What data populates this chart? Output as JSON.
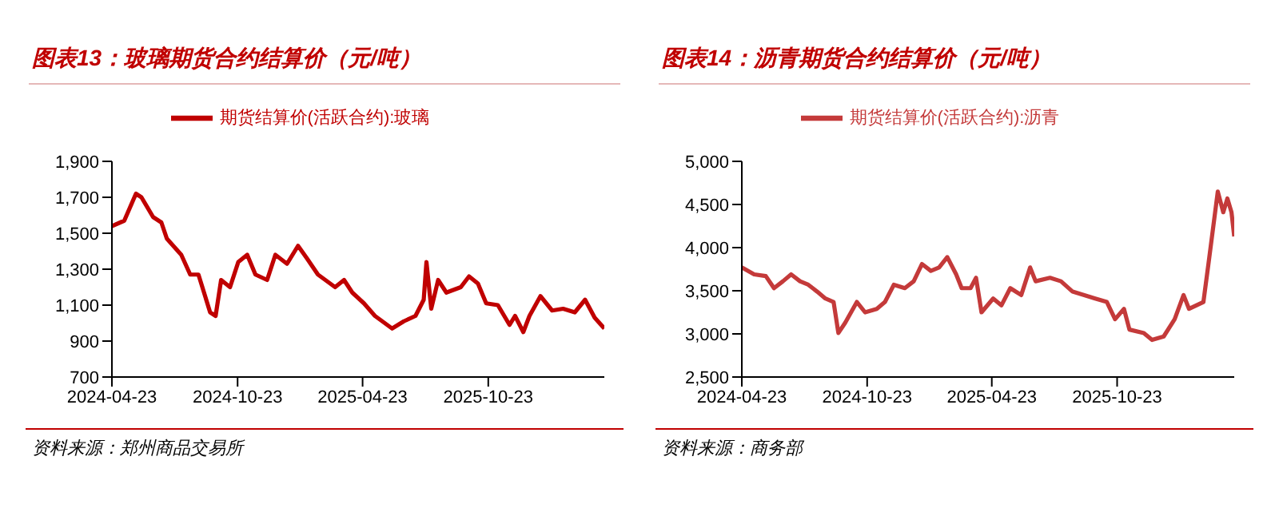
{
  "chart_data": [
    {
      "type": "line",
      "title": "图表13：玻璃期货合约结算价（元/吨）",
      "legend": "top",
      "grid": false,
      "marker": "none",
      "line_style": "solid",
      "xlim": [
        "2024-04-23",
        "2026-04-10"
      ],
      "xticks": [
        "2024-04-23",
        "2024-10-23",
        "2025-04-23",
        "2025-10-23"
      ],
      "ylim": [
        700,
        1900
      ],
      "yticks": [
        {
          "value": 700,
          "label": "700"
        },
        {
          "value": 900,
          "label": "900"
        },
        {
          "value": 1100,
          "label": "1,100"
        },
        {
          "value": 1300,
          "label": "1,300"
        },
        {
          "value": 1500,
          "label": "1,500"
        },
        {
          "value": 1700,
          "label": "1,700"
        },
        {
          "value": 1900,
          "label": "1,900"
        }
      ],
      "x": [
        "2024-04-23",
        "2024-05-11",
        "2024-05-28",
        "2024-06-05",
        "2024-06-22",
        "2024-07-04",
        "2024-07-12",
        "2024-08-02",
        "2024-08-15",
        "2024-08-27",
        "2024-09-13",
        "2024-09-21",
        "2024-09-29",
        "2024-10-12",
        "2024-10-24",
        "2024-11-06",
        "2024-11-18",
        "2024-12-05",
        "2024-12-17",
        "2025-01-03",
        "2025-01-19",
        "2025-02-01",
        "2025-02-17",
        "2025-03-14",
        "2025-03-27",
        "2025-04-08",
        "2025-04-25",
        "2025-05-11",
        "2025-06-05",
        "2025-06-22",
        "2025-07-09",
        "2025-07-21",
        "2025-07-25",
        "2025-08-01",
        "2025-08-11",
        "2025-08-23",
        "2025-09-13",
        "2025-09-25",
        "2025-10-08",
        "2025-10-20",
        "2025-11-06",
        "2025-11-23",
        "2025-12-01",
        "2025-12-13",
        "2025-12-22",
        "2026-01-07",
        "2026-01-24",
        "2026-02-09",
        "2026-02-26",
        "2026-03-13",
        "2026-03-27",
        "2026-04-10"
      ],
      "series": [
        {
          "name": "期货结算价(活跃合约):玻璃",
          "color": "#c00000",
          "values": [
            1540,
            1570,
            1720,
            1700,
            1590,
            1560,
            1470,
            1380,
            1270,
            1270,
            1060,
            1040,
            1240,
            1200,
            1340,
            1380,
            1270,
            1240,
            1380,
            1330,
            1430,
            1360,
            1270,
            1200,
            1240,
            1170,
            1110,
            1040,
            970,
            1010,
            1040,
            1130,
            1340,
            1080,
            1240,
            1170,
            1200,
            1260,
            1220,
            1110,
            1100,
            990,
            1040,
            950,
            1040,
            1150,
            1070,
            1080,
            1060,
            1130,
            1030,
            970
          ]
        }
      ],
      "annotations": [
        "资料来源：郑州商品交易所"
      ]
    },
    {
      "type": "line",
      "title": "图表14：沥青期货合约结算价（元/吨）",
      "legend": "top",
      "grid": false,
      "marker": "none",
      "line_style": "solid",
      "xlim": [
        "2024-04-23",
        "2026-04-12"
      ],
      "xticks": [
        "2024-04-23",
        "2024-10-23",
        "2025-04-23",
        "2025-10-23"
      ],
      "ylim": [
        2500,
        5000
      ],
      "yticks": [
        {
          "value": 2500,
          "label": "2,500"
        },
        {
          "value": 3000,
          "label": "3,000"
        },
        {
          "value": 3500,
          "label": "3,500"
        },
        {
          "value": 4000,
          "label": "4,000"
        },
        {
          "value": 4500,
          "label": "4,500"
        },
        {
          "value": 5000,
          "label": "5,000"
        }
      ],
      "x": [
        "2024-04-23",
        "2024-05-11",
        "2024-05-28",
        "2024-06-09",
        "2024-06-22",
        "2024-07-04",
        "2024-07-17",
        "2024-07-29",
        "2024-08-11",
        "2024-08-23",
        "2024-09-04",
        "2024-09-11",
        "2024-09-21",
        "2024-10-08",
        "2024-10-20",
        "2024-11-06",
        "2024-11-18",
        "2024-12-01",
        "2024-12-17",
        "2024-12-30",
        "2025-01-11",
        "2025-01-24",
        "2025-02-05",
        "2025-02-17",
        "2025-03-02",
        "2025-03-10",
        "2025-03-23",
        "2025-03-31",
        "2025-04-08",
        "2025-04-25",
        "2025-05-07",
        "2025-05-20",
        "2025-06-05",
        "2025-06-18",
        "2025-06-26",
        "2025-07-17",
        "2025-08-02",
        "2025-08-19",
        "2025-09-05",
        "2025-09-21",
        "2025-10-08",
        "2025-10-20",
        "2025-11-02",
        "2025-11-10",
        "2025-12-01",
        "2025-12-13",
        "2025-12-30",
        "2026-01-15",
        "2026-01-28",
        "2026-02-05",
        "2026-02-26",
        "2026-03-06",
        "2026-03-19",
        "2026-03-27",
        "2026-04-02",
        "2026-04-08",
        "2026-04-12"
      ],
      "series": [
        {
          "name": "期货结算价(活跃合约):沥青",
          "color": "#c43a3a",
          "values": [
            3770,
            3690,
            3670,
            3530,
            3610,
            3690,
            3610,
            3570,
            3490,
            3410,
            3370,
            3010,
            3130,
            3370,
            3250,
            3290,
            3370,
            3570,
            3530,
            3610,
            3810,
            3730,
            3770,
            3890,
            3690,
            3530,
            3530,
            3650,
            3250,
            3410,
            3330,
            3530,
            3450,
            3770,
            3610,
            3650,
            3610,
            3490,
            3450,
            3410,
            3370,
            3170,
            3290,
            3050,
            3010,
            2930,
            2970,
            3170,
            3450,
            3290,
            3370,
            3850,
            4650,
            4410,
            4570,
            4410,
            4130
          ]
        }
      ],
      "annotations": [
        "资料来源：商务部"
      ]
    }
  ]
}
